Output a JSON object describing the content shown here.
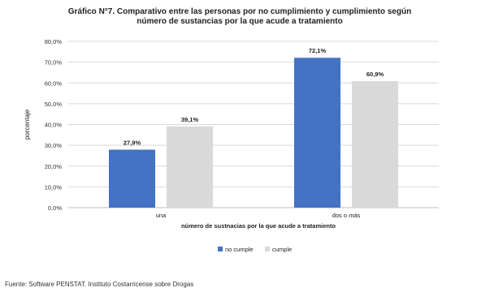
{
  "chart_data": {
    "type": "bar",
    "title_line1": "Gráfico N°7. Comparativo entre las personas por no cumplimiento y cumplimiento según",
    "title_line2": "número de sustancias por la que acude a tratamiento",
    "xlabel": "número de sustnacias por la que acude a tratamiento",
    "ylabel": "porcentaje",
    "categories": [
      "una",
      "dos o más"
    ],
    "series": [
      {
        "name": "no cumple",
        "values": [
          27.9,
          72.1
        ],
        "labels": [
          "27,9%",
          "72,1%"
        ],
        "color": "#4472C4"
      },
      {
        "name": "cumple",
        "values": [
          39.1,
          60.9
        ],
        "labels": [
          "39,1%",
          "60,9%"
        ],
        "color": "#D9D9D9"
      }
    ],
    "ylim": [
      0,
      80
    ],
    "yticks": [
      0,
      10,
      20,
      30,
      40,
      50,
      60,
      70,
      80
    ],
    "ytick_labels": [
      "0,0%",
      "10,0%",
      "20,0%",
      "30,0%",
      "40,0%",
      "50,0%",
      "60,0%",
      "70,0%",
      "80,0%"
    ],
    "grid": true,
    "legend_position": "bottom"
  },
  "source_text": "Fuente:  Software PENSTAT. Instituto Costarricense sobre Drogas"
}
